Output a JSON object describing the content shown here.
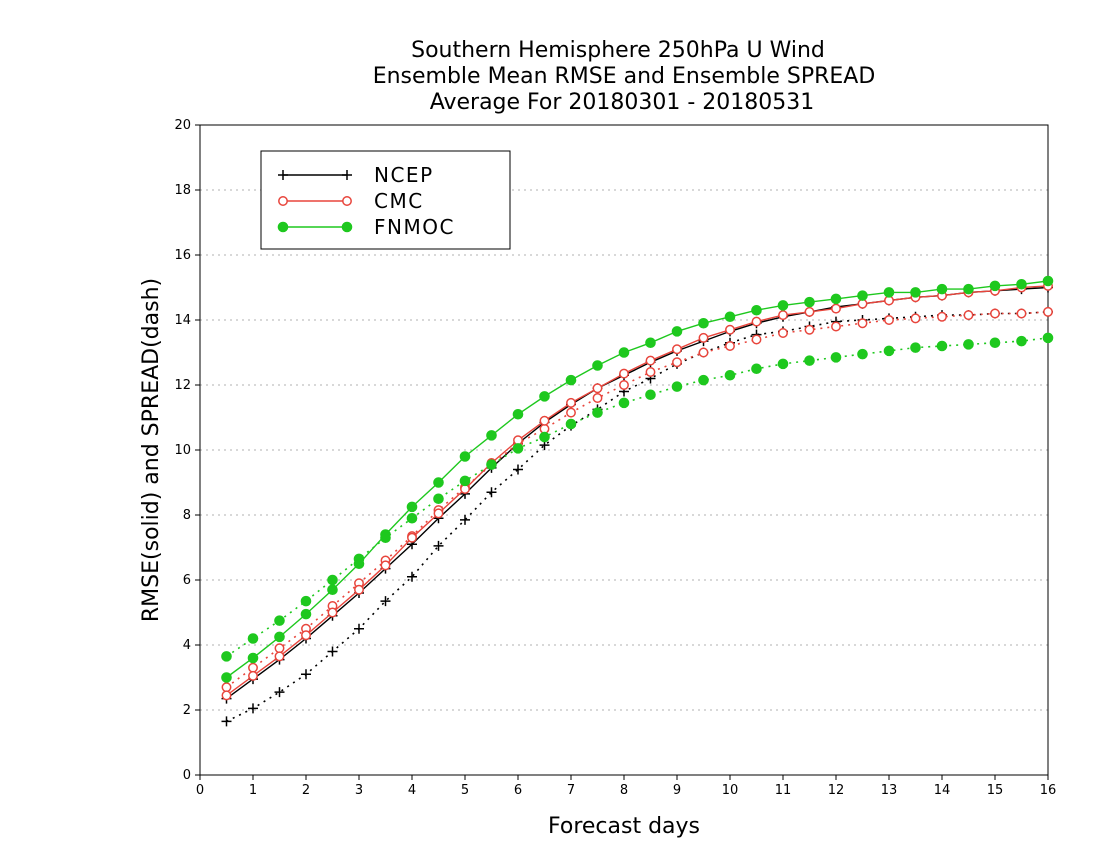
{
  "chart_data": {
    "type": "line",
    "title": [
      "Southern Hemisphere 250hPa U Wind",
      "Ensemble Mean RMSE and Ensemble SPREAD",
      "Average For 20180301 - 20180531"
    ],
    "xlabel": "Forecast days",
    "ylabel": "RMSE(solid) and SPREAD(dash)",
    "xlim": [
      0,
      16
    ],
    "ylim": [
      0,
      20
    ],
    "x_ticks": [
      0,
      1,
      2,
      3,
      4,
      5,
      6,
      7,
      8,
      9,
      10,
      11,
      12,
      13,
      14,
      15,
      16
    ],
    "y_ticks": [
      0,
      2,
      4,
      6,
      8,
      10,
      12,
      14,
      16,
      18,
      20
    ],
    "grid": true,
    "legend_position": "top-left",
    "x": [
      0.5,
      1.0,
      1.5,
      2.0,
      2.5,
      3.0,
      3.5,
      4.0,
      4.5,
      5.0,
      5.5,
      6.0,
      6.5,
      7.0,
      7.5,
      8.0,
      8.5,
      9.0,
      9.5,
      10.0,
      10.5,
      11.0,
      11.5,
      12.0,
      12.5,
      13.0,
      13.5,
      14.0,
      14.5,
      15.0,
      15.5,
      16.0
    ],
    "series": [
      {
        "name": "NCEP",
        "color": "#000000",
        "marker": "plus",
        "rmse": [
          2.35,
          2.95,
          3.55,
          4.2,
          4.9,
          5.6,
          6.35,
          7.1,
          7.9,
          8.65,
          9.45,
          10.2,
          10.85,
          11.4,
          11.9,
          12.3,
          12.7,
          13.05,
          13.35,
          13.65,
          13.9,
          14.1,
          14.25,
          14.4,
          14.5,
          14.6,
          14.7,
          14.75,
          14.85,
          14.9,
          14.95,
          15.0
        ],
        "spread": [
          1.65,
          2.05,
          2.55,
          3.1,
          3.8,
          4.5,
          5.35,
          6.1,
          7.05,
          7.85,
          8.7,
          9.4,
          10.15,
          10.75,
          11.25,
          11.8,
          12.2,
          12.65,
          13.0,
          13.3,
          13.55,
          13.65,
          13.8,
          13.95,
          14.0,
          14.05,
          14.1,
          14.15,
          14.15,
          14.2,
          14.2,
          14.25
        ]
      },
      {
        "name": "CMC",
        "color": "#e8453c",
        "marker": "open-circle",
        "rmse": [
          2.45,
          3.05,
          3.65,
          4.3,
          5.0,
          5.7,
          6.45,
          7.3,
          8.05,
          8.8,
          9.6,
          10.3,
          10.9,
          11.45,
          11.9,
          12.35,
          12.75,
          13.1,
          13.45,
          13.7,
          13.95,
          14.15,
          14.25,
          14.35,
          14.5,
          14.6,
          14.7,
          14.75,
          14.85,
          14.9,
          15.0,
          15.05
        ],
        "spread": [
          2.7,
          3.3,
          3.9,
          4.5,
          5.2,
          5.9,
          6.6,
          7.35,
          8.15,
          8.85,
          9.55,
          10.2,
          10.65,
          11.15,
          11.6,
          12.0,
          12.4,
          12.7,
          13.0,
          13.2,
          13.4,
          13.6,
          13.7,
          13.8,
          13.9,
          14.0,
          14.05,
          14.1,
          14.15,
          14.2,
          14.2,
          14.25
        ]
      },
      {
        "name": "FNMOC",
        "color": "#1ec81e",
        "marker": "filled-circle",
        "rmse": [
          3.0,
          3.6,
          4.25,
          4.95,
          5.7,
          6.5,
          7.4,
          8.25,
          9.0,
          9.8,
          10.45,
          11.1,
          11.65,
          12.15,
          12.6,
          13.0,
          13.3,
          13.65,
          13.9,
          14.1,
          14.3,
          14.45,
          14.55,
          14.65,
          14.75,
          14.85,
          14.85,
          14.95,
          14.95,
          15.05,
          15.1,
          15.2
        ],
        "spread": [
          3.65,
          4.2,
          4.75,
          5.35,
          6.0,
          6.65,
          7.3,
          7.9,
          8.5,
          9.05,
          9.55,
          10.05,
          10.4,
          10.8,
          11.15,
          11.45,
          11.7,
          11.95,
          12.15,
          12.3,
          12.5,
          12.65,
          12.75,
          12.85,
          12.95,
          13.05,
          13.15,
          13.2,
          13.25,
          13.3,
          13.35,
          13.45
        ]
      }
    ]
  }
}
